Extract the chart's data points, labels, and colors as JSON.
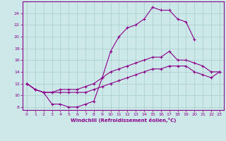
{
  "xlabel": "Windchill (Refroidissement éolien,°C)",
  "bg_color": "#cce8e8",
  "line_color": "#8b008b",
  "grid_color": "#aacccc",
  "xlim": [
    -0.5,
    23.5
  ],
  "ylim": [
    7.5,
    26
  ],
  "xticks": [
    0,
    1,
    2,
    3,
    4,
    5,
    6,
    7,
    8,
    9,
    10,
    11,
    12,
    13,
    14,
    15,
    16,
    17,
    18,
    19,
    20,
    21,
    22,
    23
  ],
  "yticks": [
    8,
    10,
    12,
    14,
    16,
    18,
    20,
    22,
    24
  ],
  "line1_x": [
    0,
    1,
    2,
    3,
    4,
    5,
    6,
    7,
    8,
    9,
    10,
    11,
    12,
    13,
    14,
    15,
    16,
    17,
    18,
    19,
    20
  ],
  "line1_y": [
    12,
    11,
    10.5,
    8.5,
    8.5,
    8,
    8,
    8.5,
    9,
    13,
    17.5,
    20,
    21.5,
    22,
    23,
    25,
    24.5,
    24.5,
    23,
    22.5,
    19.5
  ],
  "line2_x": [
    0,
    1,
    2,
    3,
    4,
    5,
    6,
    7,
    8,
    9,
    10,
    11,
    12,
    13,
    14,
    15,
    16,
    17,
    18,
    19,
    20,
    21,
    22,
    23
  ],
  "line2_y": [
    12,
    11,
    10.5,
    10.5,
    11,
    11,
    11,
    11.5,
    12,
    13,
    14,
    14.5,
    15,
    15.5,
    16,
    16.5,
    16.5,
    17.5,
    16,
    16,
    15.5,
    15,
    14,
    14
  ],
  "line3_x": [
    0,
    1,
    2,
    3,
    4,
    5,
    6,
    7,
    8,
    9,
    10,
    11,
    12,
    13,
    14,
    15,
    16,
    17,
    18,
    19,
    20,
    21,
    22,
    23
  ],
  "line3_y": [
    12,
    11,
    10.5,
    10.5,
    10.5,
    10.5,
    10.5,
    10.5,
    11,
    11.5,
    12,
    12.5,
    13,
    13.5,
    14,
    14.5,
    14.5,
    15,
    15,
    15,
    14,
    13.5,
    13,
    14
  ]
}
